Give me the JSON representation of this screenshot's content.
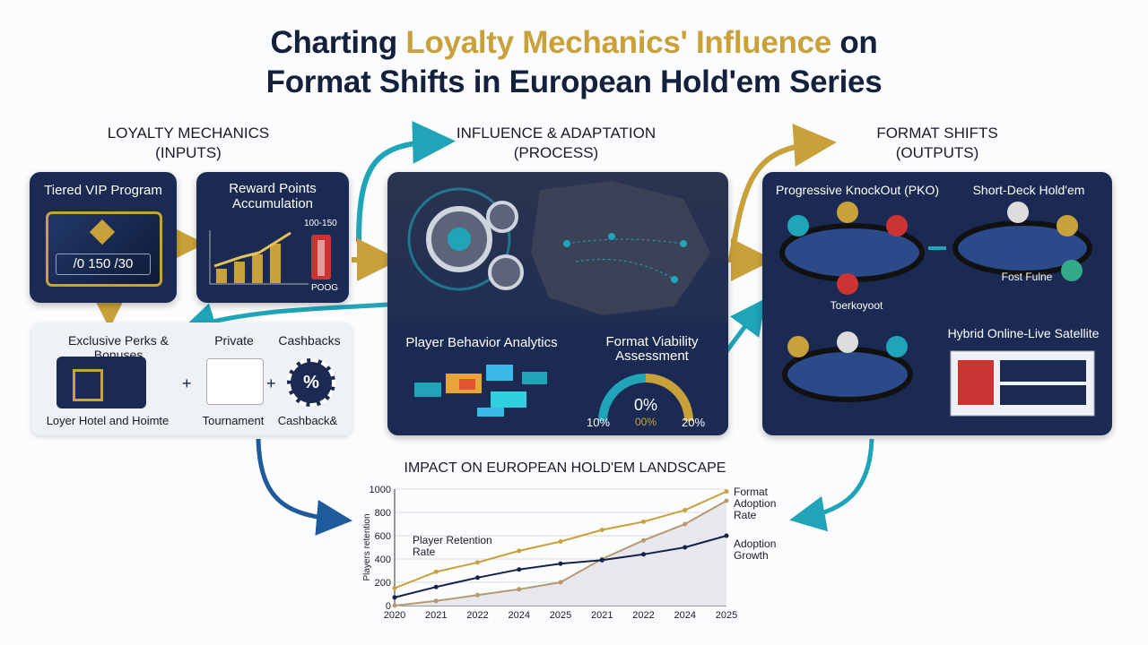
{
  "title": {
    "pre": "Charting",
    "highlight": "Loyalty Mechanics' Influence",
    "post": "on",
    "line2": "Format Shifts in European Hold'em Series"
  },
  "sections": [
    {
      "title": "LOYALTY MECHANICS",
      "sub": "(INPUTS)"
    },
    {
      "title": "INFLUENCE & ADAPTATION",
      "sub": "(PROCESS)"
    },
    {
      "title": "FORMAT SHIFTS",
      "sub": "(OUTPUTS)"
    }
  ],
  "inputs": {
    "vip": {
      "label": "Tiered VIP Program",
      "card": "/0 150 /30"
    },
    "points": {
      "label": "Reward Points Accumulation",
      "axis": "100-150",
      "foot": "POOG"
    },
    "perks": {
      "title": "Exclusive Perks & Bonuses",
      "items": [
        {
          "label": "Loyer Hotel and Hoimte"
        },
        {
          "title": "Private",
          "label": "Tournament"
        },
        {
          "title": "Cashbacks",
          "icon": "%",
          "label": "Cashback&"
        }
      ]
    }
  },
  "process": {
    "analytics": "Player Behavior Analytics",
    "assessment": "Format Viability Assessment",
    "gauge": {
      "center": "0%",
      "sub": "00%",
      "min": "10%",
      "max": "20%"
    }
  },
  "outputs": {
    "pko": {
      "label": "Progressive KnockOut (PKO)",
      "caption": "Toerkoyoot"
    },
    "shortdeck": {
      "label": "Short-Deck Hold'em",
      "caption": "Fost Fulne"
    },
    "hybrid": {
      "label": "Hybrid Online-Live Satellite"
    }
  },
  "chart": {
    "type": "line",
    "title": "IMPACT ON EUROPEAN HOLD'EM LANDSCAPE",
    "y_label": "Players retention",
    "categories": [
      "2020",
      "2021",
      "2022",
      "2024",
      "2025",
      "2021",
      "2022",
      "2024",
      "2025"
    ],
    "ylim": [
      0,
      1000
    ],
    "yticks": [
      0,
      200,
      400,
      600,
      800,
      1000
    ],
    "grid": true,
    "series": [
      {
        "name": "Player Retention Rate",
        "color": "#c9a13a",
        "values": [
          150,
          290,
          370,
          470,
          550,
          650,
          720,
          820,
          980
        ]
      },
      {
        "name": "Format Adoption Rate",
        "color": "#b59a6e",
        "values": [
          0,
          40,
          90,
          140,
          200,
          400,
          560,
          700,
          900
        ]
      },
      {
        "name": "Adoption Growth",
        "color": "#14214a",
        "values": [
          70,
          160,
          240,
          310,
          360,
          390,
          440,
          500,
          600
        ]
      }
    ]
  }
}
